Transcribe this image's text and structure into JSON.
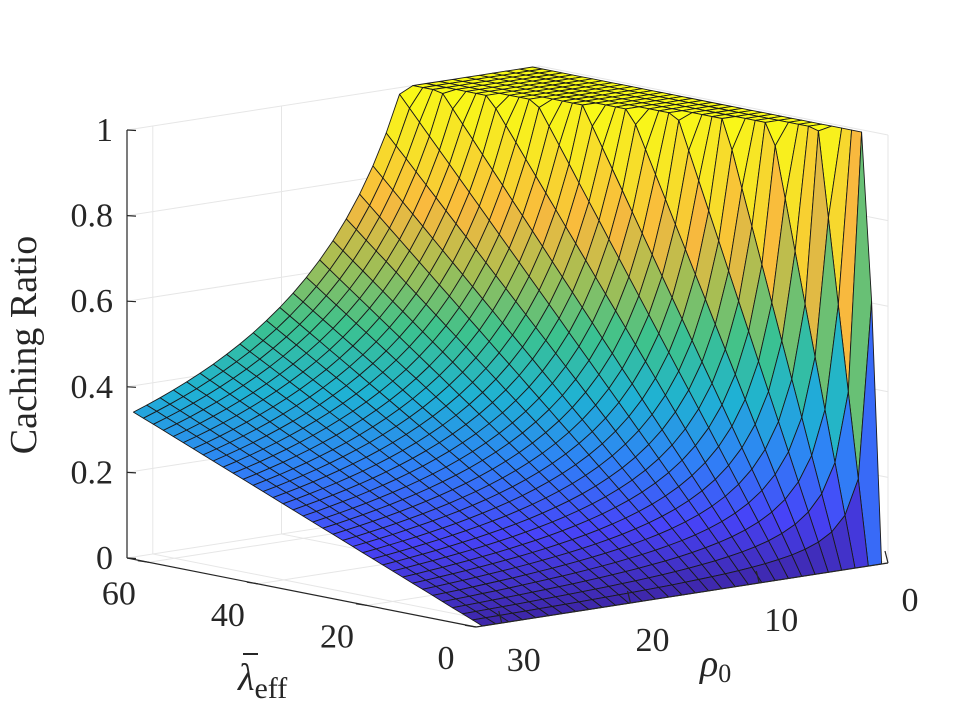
{
  "chart_data": {
    "type": "surface",
    "title": "",
    "zlabel": "Caching Ratio",
    "xlabel": {
      "base": "λ",
      "sub": "eff"
    },
    "ylabel": {
      "base": "ρ",
      "sub": "0"
    },
    "x_axis": {
      "lim": [
        0,
        64
      ],
      "ticks": [
        0,
        20,
        40,
        60
      ],
      "tick_labels": [
        "0",
        "20",
        "40",
        "60"
      ]
    },
    "y_axis": {
      "lim": [
        0,
        32
      ],
      "ticks": [
        0,
        10,
        20,
        30
      ],
      "tick_labels": [
        "0",
        "10",
        "20",
        "30"
      ]
    },
    "z_axis": {
      "lim": [
        0,
        1
      ],
      "ticks": [
        0,
        0.2,
        0.4,
        0.6,
        0.8,
        1
      ],
      "tick_labels": [
        "0",
        "0.2",
        "0.4",
        "0.6",
        "0.8",
        "1"
      ]
    },
    "grid": true,
    "colormap": [
      "#3e26a8",
      "#4743f8",
      "#2f82f6",
      "#1fb2d3",
      "#3dc28d",
      "#a6be53",
      "#f9b93e",
      "#f7e029",
      "#f9fb15"
    ],
    "surface": {
      "function": "caching_ratio = min(1, lambda_eff / (k * rho0)), k = 6",
      "k": 6,
      "lambda_range": [
        0,
        64
      ],
      "rho_range": [
        0.5,
        31.5
      ],
      "lambda_steps": 35,
      "rho_steps": 30,
      "sample_points": [
        {
          "lambda_eff": 64,
          "rho0": 30,
          "caching_ratio": 0.36
        },
        {
          "lambda_eff": 64,
          "rho0": 10,
          "caching_ratio": 1.0
        },
        {
          "lambda_eff": 40,
          "rho0": 20,
          "caching_ratio": 0.33
        },
        {
          "lambda_eff": 20,
          "rho0": 3,
          "caching_ratio": 1.0
        },
        {
          "lambda_eff": 0,
          "rho0": 30,
          "caching_ratio": 0.0
        },
        {
          "lambda_eff": 0,
          "rho0": 1,
          "caching_ratio": 0.0
        }
      ]
    }
  }
}
